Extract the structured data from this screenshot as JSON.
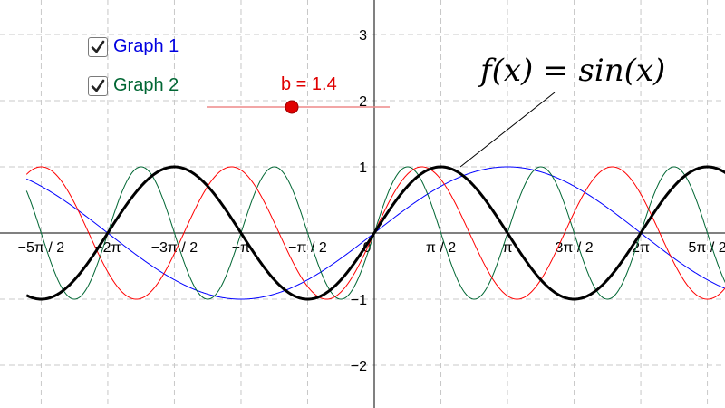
{
  "checkboxes": [
    {
      "label": "Graph 1",
      "checked": true,
      "color": "#0000e0"
    },
    {
      "label": "Graph 2",
      "checked": true,
      "color": "#006633"
    }
  ],
  "slider": {
    "label": "b = 1.4",
    "value": 1.4,
    "color": "#e00000"
  },
  "formula": "f(x) = sin(x)",
  "axes": {
    "x_ticks": [
      "−5π / 2",
      "−2π",
      "−3π / 2",
      "−π",
      "−π / 2",
      "0",
      "π / 2",
      "π",
      "3π / 2",
      "2π",
      "5π / 2"
    ],
    "y_ticks": [
      "3",
      "2",
      "1",
      "−1",
      "−2"
    ]
  },
  "chart_data": {
    "type": "line",
    "xlim": [
      -8.2,
      8.5
    ],
    "ylim": [
      -2.6,
      3.5
    ],
    "grid": true,
    "series": [
      {
        "function": "sin(x)",
        "color": "#000000"
      },
      {
        "function": "sin(x/2)",
        "color": "#0000ff"
      },
      {
        "function": "sin(1.4x)",
        "color": "#ff0000"
      },
      {
        "function": "sin(2x)",
        "color": "#006633"
      }
    ]
  }
}
